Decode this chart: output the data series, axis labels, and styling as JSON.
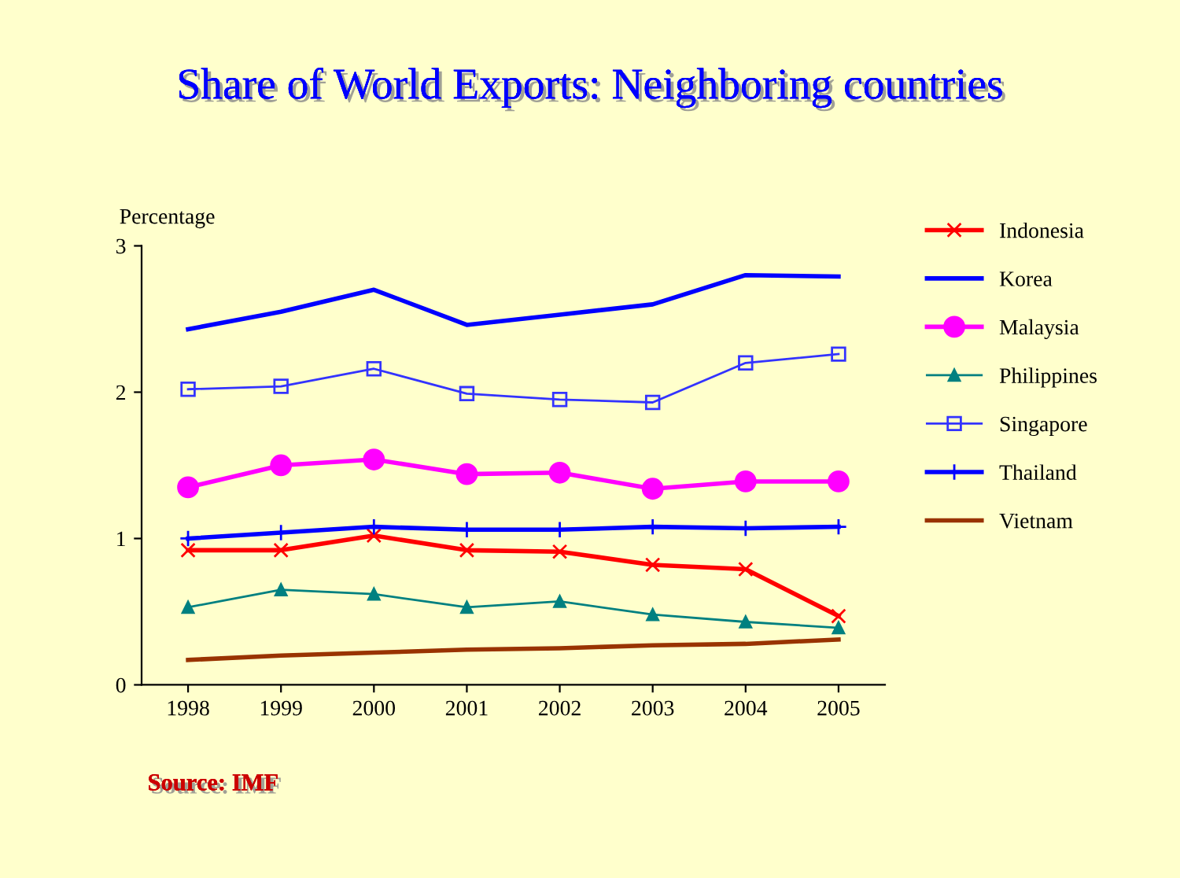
{
  "chart_data": {
    "type": "line",
    "title": "Share of World Exports: Neighboring countries",
    "ylabel": "Percentage",
    "categories": [
      "1998",
      "1999",
      "2000",
      "2001",
      "2002",
      "2003",
      "2004",
      "2005"
    ],
    "ylim": [
      0,
      3
    ],
    "yticks": [
      0,
      1,
      2,
      3
    ],
    "grid": false,
    "legend": "right",
    "annotations": [
      "Source: IMF"
    ],
    "series": [
      {
        "name": "Indonesia",
        "color": "#ff0000",
        "marker": "cross",
        "values": [
          0.92,
          0.92,
          1.02,
          0.92,
          0.91,
          0.82,
          0.79,
          0.47
        ]
      },
      {
        "name": "Korea",
        "color": "#0000ff",
        "marker": "none",
        "values": [
          2.43,
          2.55,
          2.7,
          2.46,
          2.53,
          2.6,
          2.8,
          2.79
        ]
      },
      {
        "name": "Malaysia",
        "color": "#ff00ff",
        "marker": "circle",
        "values": [
          1.35,
          1.5,
          1.54,
          1.44,
          1.45,
          1.34,
          1.39,
          1.39
        ]
      },
      {
        "name": "Philippines",
        "color": "#008080",
        "marker": "triangle",
        "values": [
          0.53,
          0.65,
          0.62,
          0.53,
          0.57,
          0.48,
          0.43,
          0.39
        ]
      },
      {
        "name": "Singapore",
        "color": "#3333ff",
        "marker": "square",
        "values": [
          2.02,
          2.04,
          2.16,
          1.99,
          1.95,
          1.93,
          2.2,
          2.26
        ]
      },
      {
        "name": "Thailand",
        "color": "#0000ff",
        "marker": "plus",
        "values": [
          1.0,
          1.04,
          1.08,
          1.06,
          1.06,
          1.08,
          1.07,
          1.08
        ]
      },
      {
        "name": "Vietnam",
        "color": "#993300",
        "marker": "none",
        "values": [
          0.17,
          0.2,
          0.22,
          0.24,
          0.25,
          0.27,
          0.28,
          0.31
        ]
      }
    ]
  }
}
